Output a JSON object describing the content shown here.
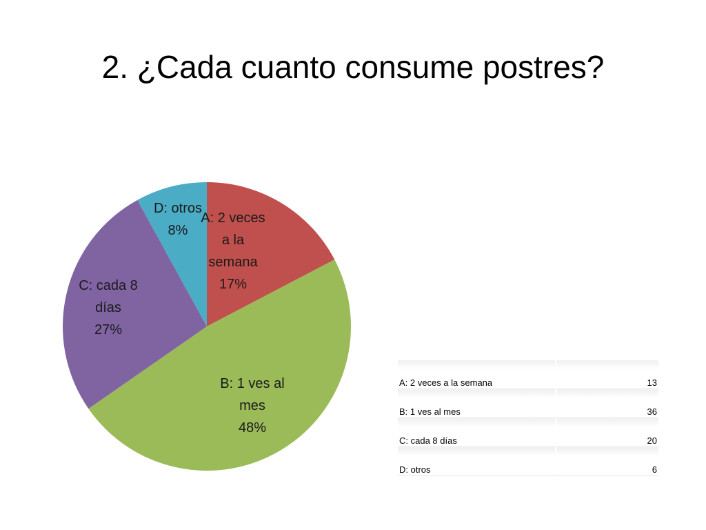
{
  "slide": {
    "title": "2. ¿Cada cuanto consume postres?"
  },
  "chart_data": {
    "type": "pie",
    "categories": [
      "A: 2 veces a la semana",
      "B: 1 ves al mes",
      "C: cada 8 días",
      "D: otros"
    ],
    "values": [
      13,
      36,
      20,
      6
    ],
    "percent_labels": [
      "17%",
      "48%",
      "27%",
      "8%"
    ],
    "slice_label_lines": [
      [
        "A: 2 veces",
        "a la",
        "semana",
        "17%"
      ],
      [
        "B: 1 ves al",
        "mes",
        "48%"
      ],
      [
        "C: cada 8",
        "días",
        "27%"
      ],
      [
        "D: otros",
        "8%"
      ]
    ],
    "colors": [
      "#c0504d",
      "#9bbb59",
      "#8064a2",
      "#4bacc6"
    ],
    "start_angle": "12 o'clock",
    "direction": "clockwise",
    "legend": "none"
  },
  "table": {
    "rows": [
      {
        "label": "A: 2 veces a la semana",
        "value": "13"
      },
      {
        "label": "B: 1 ves al mes",
        "value": "36"
      },
      {
        "label": "C: cada 8 días",
        "value": "20"
      },
      {
        "label": "D: otros",
        "value": "6"
      }
    ]
  }
}
